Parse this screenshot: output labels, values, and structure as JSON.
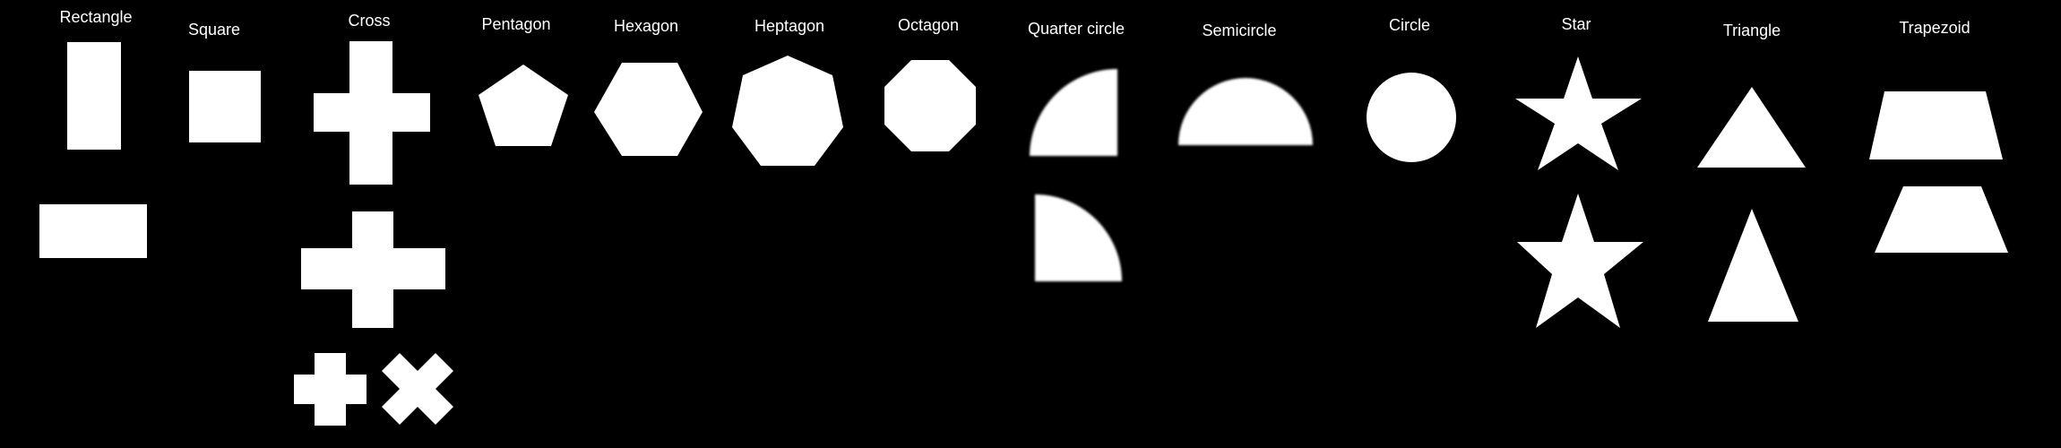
{
  "background": "#000000",
  "shape_color": "#ffffff",
  "label_color": "#ffffff",
  "labels": {
    "rectangle": "Rectangle",
    "square": "Square",
    "cross": "Cross",
    "pentagon": "Pentagon",
    "hexagon": "Hexagon",
    "heptagon": "Heptagon",
    "octagon": "Octagon",
    "quarter_circle": "Quarter circle",
    "semicircle": "Semicircle",
    "circle": "Circle",
    "star": "Star",
    "triangle": "Triangle",
    "trapezoid": "Trapezoid"
  }
}
